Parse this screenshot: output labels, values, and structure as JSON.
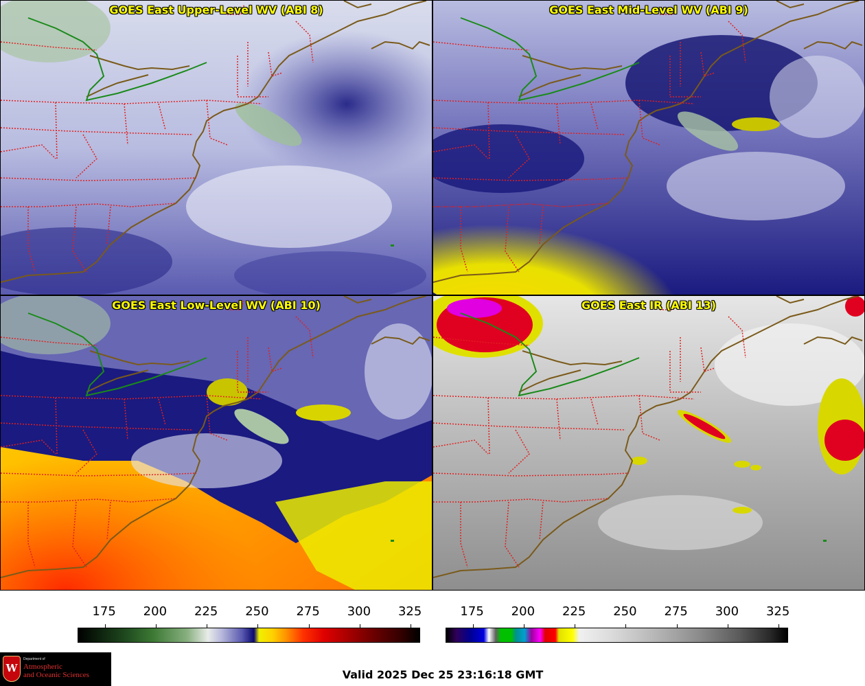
{
  "panels": {
    "upper": {
      "title": "GOES East Upper-Level WV (ABI 8)"
    },
    "mid": {
      "title": "GOES East Mid-Level WV (ABI 9)"
    },
    "low": {
      "title": "GOES East Low-Level WV (ABI 10)"
    },
    "ir": {
      "title": "GOES East IR (ABI 13)"
    }
  },
  "colorbars": {
    "wv": {
      "ticks": [
        "175",
        "200",
        "225",
        "250",
        "275",
        "300",
        "325"
      ],
      "min": 162,
      "max": 330
    },
    "ir": {
      "ticks": [
        "175",
        "200",
        "225",
        "250",
        "275",
        "300",
        "325"
      ],
      "min": 162,
      "max": 330
    }
  },
  "logo": {
    "dept": "Department of",
    "line1": "Atmospheric",
    "line2": "and Oceanic Sciences",
    "crest_letter": "W"
  },
  "valid_time": "Valid 2025 Dec 25 23:16:18 GMT",
  "colors": {
    "title_text": "#ffff00",
    "coastline": "#7a5a1a",
    "state_borders": "#e02020",
    "canada_border": "#1a8a1a"
  }
}
